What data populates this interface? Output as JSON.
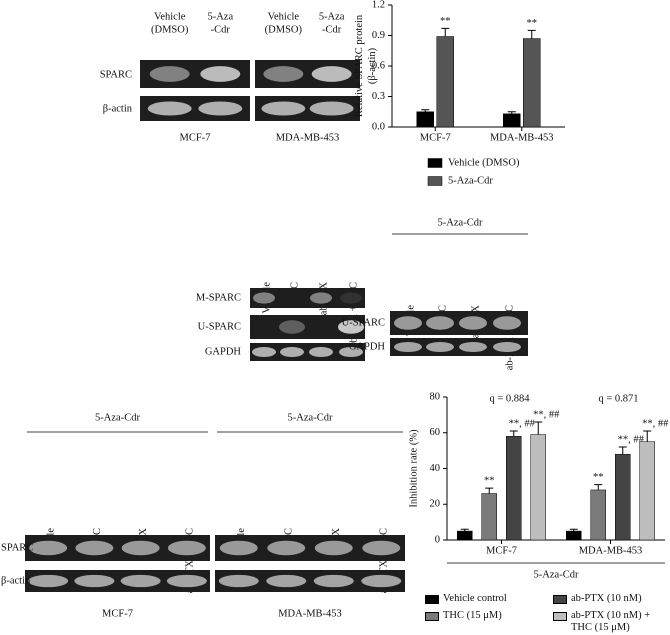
{
  "chart_data": [
    {
      "type": "bar",
      "ylabel": [
        "Relative SPARC protein",
        "(β-actin)"
      ],
      "categories": [
        "MCF-7",
        "MDA-MB-453"
      ],
      "series": [
        {
          "name": "Vehicle (DMSO)",
          "color": "#000000",
          "values": [
            0.15,
            0.13
          ],
          "errors": [
            0.02,
            0.02
          ]
        },
        {
          "name": "5-Aza-Cdr",
          "color": "#555555",
          "values": [
            0.89,
            0.87
          ],
          "errors": [
            0.08,
            0.08
          ],
          "labels": [
            "**",
            "**"
          ]
        }
      ],
      "ylim": [
        0,
        1.2
      ],
      "yticks": [
        {
          "value": 0,
          "label": "0.0"
        },
        0.3,
        0.6,
        0.9,
        1.2
      ],
      "grid": false
    },
    {
      "type": "bar",
      "ylabel": [
        "Inhibition rate (%)"
      ],
      "xlabel": "5-Aza-Cdr",
      "categories": [
        "MCF-7",
        "MDA-MB-453"
      ],
      "q_labels": [
        "q = 0.884",
        "q = 0.871"
      ],
      "series": [
        {
          "name": "Vehicle control",
          "color": "#000000",
          "values": [
            5,
            5
          ],
          "errors": [
            1,
            1
          ]
        },
        {
          "name": "THC (15 μM)",
          "color": "#7a7a7a",
          "values": [
            26,
            28
          ],
          "errors": [
            3,
            3
          ],
          "labels": [
            "**",
            "**"
          ]
        },
        {
          "name": "ab-PTX (10 nM)",
          "color": "#444444",
          "values": [
            58,
            48
          ],
          "errors": [
            3,
            4
          ],
          "labels": [
            "**, ##",
            "**, ##"
          ]
        },
        {
          "name": "ab-PTX (10 nM) + THC (15 μM)",
          "color": "#bdbdbd",
          "values": [
            59,
            55
          ],
          "errors": [
            7,
            6
          ],
          "labels": [
            "**, ##",
            "**, ##"
          ]
        }
      ],
      "ylim": [
        0,
        80
      ],
      "yticks": [
        0,
        20,
        40,
        60,
        80
      ],
      "grid": false
    }
  ],
  "panel_a": {
    "lanes": [
      [
        "Vehicle",
        "(DMSO)"
      ],
      [
        "5-Aza",
        "-Cdr"
      ]
    ],
    "rows": [
      "SPARC",
      "β-actin"
    ],
    "cells": [
      "MCF-7",
      "MDA-MB-453"
    ]
  },
  "panel_b": {
    "lanes": [
      "Vehicle",
      "THC",
      "ab-PTX",
      "ab-PTX + THC"
    ],
    "rows": [
      "M-SPARC",
      "U-SPARC",
      "GAPDH"
    ]
  },
  "panel_c": {
    "treatment": "5-Aza-Cdr",
    "lanes": [
      "Vehicle",
      "THC",
      "ab-PTX",
      "ab-PTX + THC"
    ],
    "rows": [
      "U-SPARC",
      "GAPDH"
    ]
  },
  "panel_d": {
    "treatment": "5-Aza-Cdr",
    "lanes": [
      "Vehicle",
      "THC",
      "ab-PTX",
      "ab-PTX + THC"
    ],
    "rows": [
      "SPARC",
      "β-actin"
    ],
    "cells": [
      "MCF-7",
      "MDA-MB-453"
    ]
  }
}
